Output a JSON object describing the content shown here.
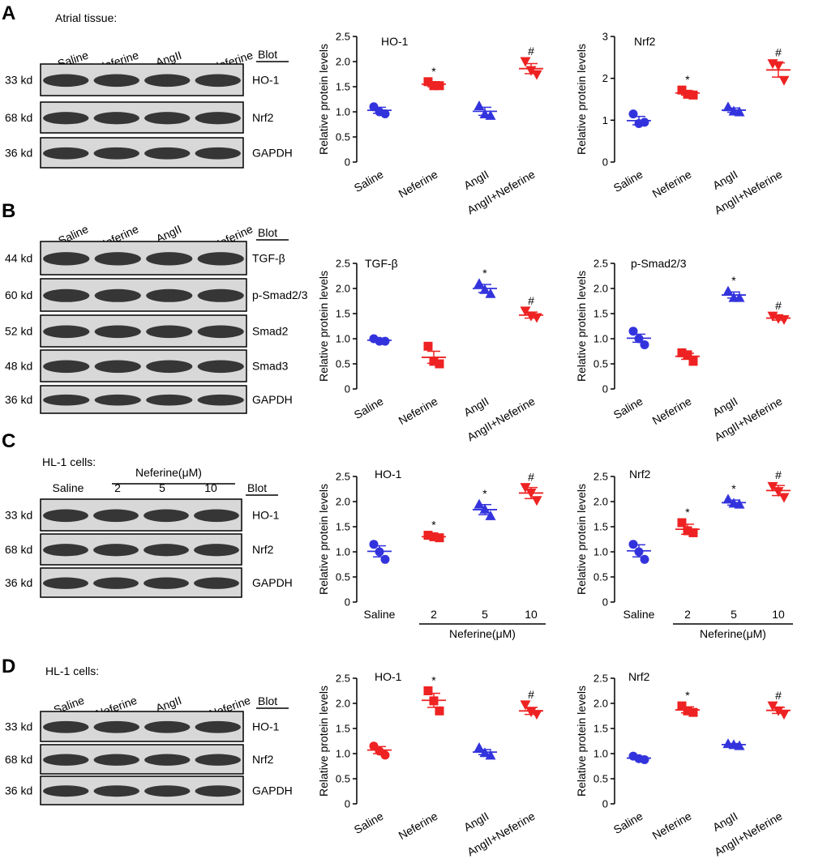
{
  "colors": {
    "blue": "#3333dd",
    "red": "#ee2222"
  },
  "panels": [
    {
      "letter": "A",
      "heading": "Atrial tissue:",
      "lanes": [
        "Saline",
        "Neferine",
        "AngII",
        "AngII+Neferine"
      ],
      "blot_header": "Blot",
      "rows": [
        {
          "kd": "33 kd",
          "protein": "HO-1"
        },
        {
          "kd": "68 kd",
          "protein": "Nrf2"
        },
        {
          "kd": "36 kd",
          "protein": "GAPDH"
        }
      ]
    },
    {
      "letter": "B",
      "heading": "",
      "lanes": [
        "Saline",
        "Neferine",
        "AngII",
        "AngII+Neferine"
      ],
      "blot_header": "Blot",
      "rows": [
        {
          "kd": "44 kd",
          "protein": "TGF-β"
        },
        {
          "kd": "60 kd",
          "protein": "p-Smad2/3"
        },
        {
          "kd": "52 kd",
          "protein": "Smad2"
        },
        {
          "kd": "48 kd",
          "protein": "Smad3"
        },
        {
          "kd": "36 kd",
          "protein": "GAPDH"
        }
      ]
    },
    {
      "letter": "C",
      "heading": "HL-1 cells:",
      "group_label": "Neferine(μM)",
      "lanes": [
        "Saline",
        "2",
        "5",
        "10"
      ],
      "blot_header": "Blot",
      "rows": [
        {
          "kd": "33 kd",
          "protein": "HO-1"
        },
        {
          "kd": "68 kd",
          "protein": "Nrf2"
        },
        {
          "kd": "36 kd",
          "protein": "GAPDH"
        }
      ]
    },
    {
      "letter": "D",
      "heading": "HL-1 cells:",
      "lanes": [
        "Saline",
        "Neferine",
        "AngII",
        "AngII+Neferine"
      ],
      "blot_header": "Blot",
      "rows": [
        {
          "kd": "33 kd",
          "protein": "HO-1"
        },
        {
          "kd": "68 kd",
          "protein": "Nrf2"
        },
        {
          "kd": "36 kd",
          "protein": "GAPDH"
        }
      ]
    }
  ],
  "chart_data": [
    {
      "type": "scatter",
      "panel": "A",
      "title": "HO-1",
      "ylabel": "Relative protein levels",
      "ylim": [
        0,
        2.5
      ],
      "yticks": [
        "0",
        "0.5",
        "1.0",
        "1.5",
        "2.0",
        "2.5"
      ],
      "categories": [
        "Saline",
        "Neferine",
        "AngII",
        "AngII+Neferine"
      ],
      "colors": [
        "blue",
        "red",
        "blue",
        "red"
      ],
      "markers": [
        "circle",
        "square",
        "triangle",
        "triangle-down"
      ],
      "means": [
        1.03,
        1.55,
        1.01,
        1.86
      ],
      "sem": [
        0.06,
        0.05,
        0.08,
        0.1
      ],
      "points": [
        [
          1.1,
          1.0,
          0.96
        ],
        [
          1.6,
          1.52,
          1.52
        ],
        [
          1.12,
          0.96,
          0.93
        ],
        [
          2.0,
          1.82,
          1.74
        ]
      ],
      "significance": [
        "",
        "*",
        "",
        "#"
      ]
    },
    {
      "type": "scatter",
      "panel": "A",
      "title": "Nrf2",
      "ylabel": "Relative protein levels",
      "ylim": [
        0,
        3
      ],
      "yticks": [
        "0",
        "1",
        "2",
        "3"
      ],
      "categories": [
        "Saline",
        "Neferine",
        "AngII",
        "AngII+Neferine"
      ],
      "colors": [
        "blue",
        "red",
        "blue",
        "red"
      ],
      "markers": [
        "circle",
        "square",
        "triangle",
        "triangle-down"
      ],
      "means": [
        0.99,
        1.65,
        1.24,
        2.2
      ],
      "sem": [
        0.1,
        0.05,
        0.05,
        0.17
      ],
      "points": [
        [
          1.15,
          0.92,
          0.95
        ],
        [
          1.72,
          1.62,
          1.6
        ],
        [
          1.32,
          1.22,
          1.2
        ],
        [
          2.35,
          2.3,
          1.95
        ]
      ],
      "significance": [
        "",
        "*",
        "",
        "#"
      ]
    },
    {
      "type": "scatter",
      "panel": "B",
      "title": "TGF-β",
      "ylabel": "Relative protein levels",
      "ylim": [
        0,
        2.5
      ],
      "yticks": [
        "0",
        "0.5",
        "1.0",
        "1.5",
        "2.0",
        "2.5"
      ],
      "categories": [
        "Saline",
        "Neferine",
        "AngII",
        "AngII+Neferine"
      ],
      "colors": [
        "blue",
        "red",
        "blue",
        "red"
      ],
      "markers": [
        "circle",
        "square",
        "triangle",
        "triangle-down"
      ],
      "means": [
        0.97,
        0.63,
        2.0,
        1.47
      ],
      "sem": [
        0.03,
        0.12,
        0.08,
        0.06
      ],
      "points": [
        [
          1.0,
          0.95,
          0.95
        ],
        [
          0.85,
          0.55,
          0.5
        ],
        [
          2.1,
          1.98,
          1.9
        ],
        [
          1.55,
          1.45,
          1.42
        ]
      ],
      "significance": [
        "",
        "",
        "*",
        "#"
      ]
    },
    {
      "type": "scatter",
      "panel": "B",
      "title": "p-Smad2/3",
      "ylabel": "Relative protein levels",
      "ylim": [
        0,
        2.5
      ],
      "yticks": [
        "0",
        "0.5",
        "1.0",
        "1.5",
        "2.0",
        "2.5"
      ],
      "categories": [
        "Saline",
        "Neferine",
        "AngII",
        "AngII+Neferine"
      ],
      "colors": [
        "blue",
        "red",
        "blue",
        "red"
      ],
      "markers": [
        "circle",
        "square",
        "triangle",
        "triangle-down"
      ],
      "means": [
        1.01,
        0.65,
        1.87,
        1.41
      ],
      "sem": [
        0.08,
        0.06,
        0.06,
        0.04
      ],
      "points": [
        [
          1.15,
          1.0,
          0.88
        ],
        [
          0.72,
          0.68,
          0.55
        ],
        [
          1.95,
          1.82,
          1.82
        ],
        [
          1.45,
          1.4,
          1.38
        ]
      ],
      "significance": [
        "",
        "",
        "*",
        "#"
      ]
    },
    {
      "type": "scatter",
      "panel": "C",
      "title": "HO-1",
      "ylabel": "Relative protein levels",
      "ylim": [
        0,
        2.5
      ],
      "yticks": [
        "0",
        "0.5",
        "1.0",
        "1.5",
        "2.0",
        "2.5"
      ],
      "categories": [
        "Saline",
        "2",
        "5",
        "10"
      ],
      "group_label": "Neferine(μM)",
      "group_span": [
        1,
        3
      ],
      "colors": [
        "blue",
        "red",
        "blue",
        "red"
      ],
      "markers": [
        "circle",
        "square",
        "triangle",
        "triangle-down"
      ],
      "means": [
        1.01,
        1.3,
        1.84,
        2.17
      ],
      "sem": [
        0.11,
        0.03,
        0.1,
        0.11
      ],
      "points": [
        [
          1.15,
          1.0,
          0.85
        ],
        [
          1.33,
          1.3,
          1.28
        ],
        [
          1.95,
          1.85,
          1.72
        ],
        [
          2.28,
          2.17,
          2.02
        ]
      ],
      "significance": [
        "",
        "*",
        "*",
        "#"
      ]
    },
    {
      "type": "scatter",
      "panel": "C",
      "title": "Nrf2",
      "ylabel": "Relative protein levels",
      "ylim": [
        0,
        2.5
      ],
      "yticks": [
        "0",
        "0.5",
        "1.0",
        "1.5",
        "2.0",
        "2.5"
      ],
      "categories": [
        "Saline",
        "2",
        "5",
        "10"
      ],
      "group_label": "Neferine(μM)",
      "group_span": [
        1,
        3
      ],
      "colors": [
        "blue",
        "red",
        "blue",
        "red"
      ],
      "markers": [
        "circle",
        "square",
        "triangle",
        "triangle-down"
      ],
      "means": [
        1.02,
        1.45,
        1.98,
        2.22
      ],
      "sem": [
        0.12,
        0.1,
        0.05,
        0.1
      ],
      "points": [
        [
          1.15,
          1.0,
          0.85
        ],
        [
          1.58,
          1.42,
          1.38
        ],
        [
          2.05,
          1.97,
          1.95
        ],
        [
          2.3,
          2.2,
          2.08
        ]
      ],
      "significance": [
        "",
        "*",
        "*",
        "#"
      ]
    },
    {
      "type": "scatter",
      "panel": "D",
      "title": "HO-1",
      "ylabel": "Relative protein levels",
      "ylim": [
        0,
        2.5
      ],
      "yticks": [
        "0",
        "0.5",
        "1.0",
        "1.5",
        "2.0",
        "2.5"
      ],
      "categories": [
        "Saline",
        "Neferine",
        "AngII",
        "AngII+Neferine"
      ],
      "colors": [
        "red",
        "red",
        "blue",
        "red"
      ],
      "markers": [
        "circle",
        "square",
        "triangle",
        "triangle-down"
      ],
      "means": [
        1.07,
        2.06,
        1.03,
        1.85
      ],
      "sem": [
        0.07,
        0.14,
        0.05,
        0.07
      ],
      "points": [
        [
          1.15,
          1.05,
          0.97
        ],
        [
          2.25,
          2.05,
          1.85
        ],
        [
          1.12,
          1.02,
          0.97
        ],
        [
          1.97,
          1.83,
          1.78
        ]
      ],
      "significance": [
        "",
        "*",
        "",
        "#"
      ]
    },
    {
      "type": "scatter",
      "panel": "D",
      "title": "Nrf2",
      "ylabel": "Relative protein levels",
      "ylim": [
        0,
        2.5
      ],
      "yticks": [
        "0",
        "0.5",
        "1.0",
        "1.5",
        "2.0",
        "2.5"
      ],
      "categories": [
        "Saline",
        "Neferine",
        "AngII",
        "AngII+Neferine"
      ],
      "colors": [
        "blue",
        "red",
        "blue",
        "red"
      ],
      "markers": [
        "circle",
        "square",
        "triangle",
        "triangle-down"
      ],
      "means": [
        0.91,
        1.87,
        1.18,
        1.86
      ],
      "sem": [
        0.03,
        0.06,
        0.02,
        0.06
      ],
      "points": [
        [
          0.95,
          0.9,
          0.88
        ],
        [
          1.95,
          1.85,
          1.82
        ],
        [
          1.2,
          1.18,
          1.16
        ],
        [
          1.95,
          1.85,
          1.78
        ]
      ],
      "significance": [
        "",
        "*",
        "",
        "#"
      ]
    }
  ]
}
